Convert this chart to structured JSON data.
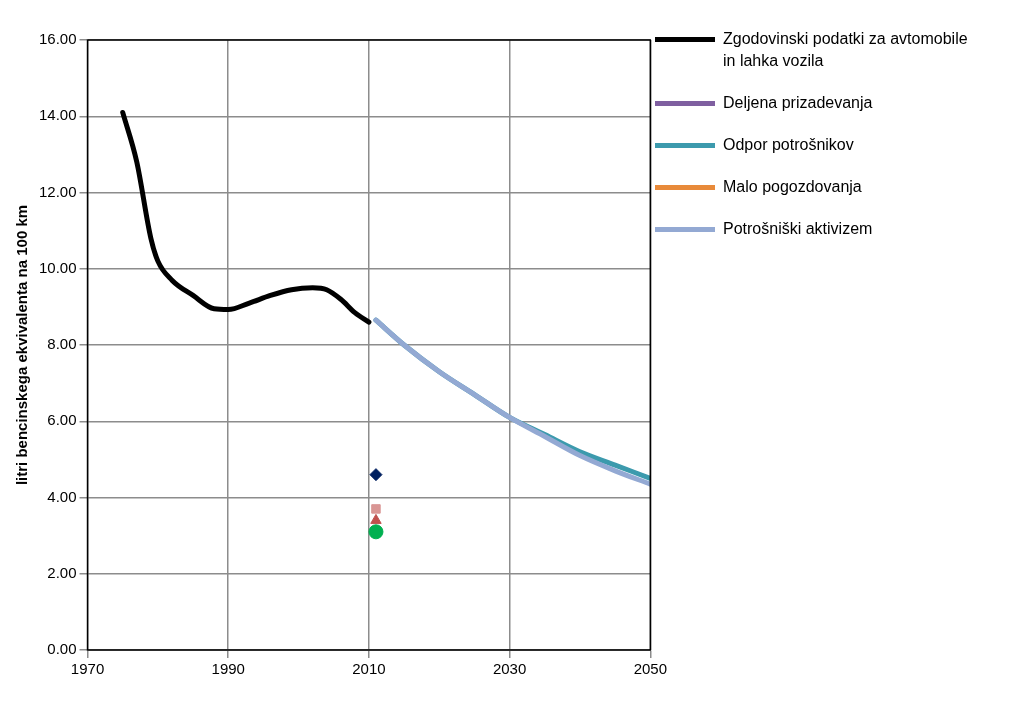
{
  "chart_data": {
    "type": "line",
    "ylabel": "litri bencinskega ekvivalenta na 100 km",
    "xlim": [
      1970,
      2050
    ],
    "xticks": [
      1970,
      1990,
      2010,
      2030,
      2050
    ],
    "ylim": [
      0,
      16
    ],
    "yticks": [
      {
        "value": 0,
        "label": "0.00"
      },
      {
        "value": 2,
        "label": "2.00"
      },
      {
        "value": 4,
        "label": "4.00"
      },
      {
        "value": 6,
        "label": "6.00"
      },
      {
        "value": 8,
        "label": "8.00"
      },
      {
        "value": 10,
        "label": "10.00"
      },
      {
        "value": 12,
        "label": "12.00"
      },
      {
        "value": 14,
        "label": "14.00"
      },
      {
        "value": 16,
        "label": "16.00"
      }
    ],
    "grid": true,
    "legend": "right",
    "marker": "none",
    "line_style": "solid",
    "series": [
      {
        "name": "Zgodovinski podatki za avtomobile in lahka vozila",
        "color": "#000000",
        "x": [
          1975,
          1977,
          1979,
          1980,
          1982,
          1985,
          1988,
          1990,
          1993,
          1996,
          1999,
          2002,
          2004,
          2006,
          2008,
          2010
        ],
        "values": [
          14.1,
          12.8,
          10.8,
          10.2,
          9.7,
          9.3,
          8.95,
          8.93,
          9.1,
          9.3,
          9.45,
          9.5,
          9.45,
          9.2,
          8.85,
          8.6
        ]
      },
      {
        "name": "Deljena prizadevanja",
        "color": "#7f5fa0"
      },
      {
        "name": "Odpor potrošnikov",
        "color": "#3c9aad",
        "x": [
          2011,
          2015,
          2020,
          2025,
          2030,
          2035,
          2040,
          2045,
          2050
        ],
        "values": [
          8.65,
          8.0,
          7.3,
          6.7,
          6.1,
          5.65,
          5.2,
          4.85,
          4.5
        ]
      },
      {
        "name": "Malo pogozdovanja",
        "color": "#e88a3a"
      },
      {
        "name": "Potrošniški aktivizem",
        "color": "#93a9d3",
        "x": [
          2011,
          2015,
          2020,
          2025,
          2030,
          2035,
          2040,
          2045,
          2050
        ],
        "values": [
          8.65,
          8.0,
          7.3,
          6.7,
          6.1,
          5.6,
          5.1,
          4.7,
          4.35
        ]
      },
      {
        "type": "scatter",
        "marker": "diamond",
        "color": "#002060",
        "x": [
          2011
        ],
        "values": [
          4.6
        ]
      },
      {
        "type": "scatter",
        "marker": "square",
        "color": "#d99694",
        "x": [
          2011
        ],
        "values": [
          3.7
        ]
      },
      {
        "type": "scatter",
        "marker": "triangle",
        "color": "#c0504d",
        "x": [
          2011
        ],
        "values": [
          3.4
        ]
      },
      {
        "type": "scatter",
        "marker": "circle",
        "color": "#00b050",
        "x": [
          2011
        ],
        "values": [
          3.1
        ]
      }
    ]
  }
}
